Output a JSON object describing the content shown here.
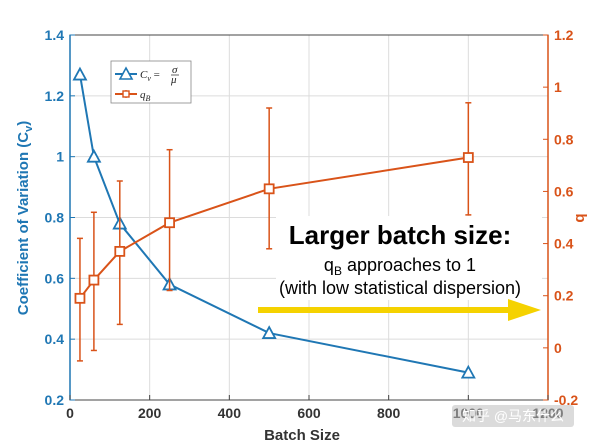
{
  "chart_data": {
    "type": "line",
    "xlabel": "Batch Size",
    "ylabel_left": "Coefficient of Variation (C",
    "ylabel_left_sub": "v",
    "ylabel_left_close": ")",
    "ylabel_right": "q",
    "xlim": [
      0,
      1200
    ],
    "ylim_left": [
      0.2,
      1.4
    ],
    "ylim_right": [
      -0.2,
      1.2
    ],
    "xticks": [
      0,
      200,
      400,
      600,
      800,
      1000,
      1200
    ],
    "xtick_labels": [
      "0",
      "200",
      "400",
      "600",
      "800",
      "1000",
      "1200"
    ],
    "yticks_left": [
      0.2,
      0.4,
      0.6,
      0.8,
      1,
      1.2,
      1.4
    ],
    "ytick_labels_left": [
      "0.2",
      "0.4",
      "0.6",
      "0.8",
      "1",
      "1.2",
      "1.4"
    ],
    "yticks_right": [
      -0.2,
      0,
      0.2,
      0.4,
      0.6,
      0.8,
      1,
      1.2
    ],
    "ytick_labels_right": [
      "-0.2",
      "0",
      "0.2",
      "0.4",
      "0.6",
      "0.8",
      "1",
      "1.2"
    ],
    "grid": true,
    "legend_position": "top-left",
    "series": [
      {
        "name": "C_v = σ/μ",
        "axis": "left",
        "color": "#1f77b4",
        "marker": "triangle",
        "x": [
          25,
          60,
          125,
          250,
          500,
          1000
        ],
        "y": [
          1.27,
          1.0,
          0.78,
          0.58,
          0.42,
          0.29
        ]
      },
      {
        "name": "q_B",
        "axis": "right",
        "color": "#d95319",
        "marker": "square",
        "x": [
          25,
          60,
          125,
          250,
          500,
          1000
        ],
        "y": [
          0.19,
          0.26,
          0.37,
          0.48,
          0.61,
          0.73
        ],
        "err_low": [
          -0.05,
          -0.01,
          0.09,
          0.22,
          0.38,
          0.51
        ],
        "err_high": [
          0.42,
          0.52,
          0.64,
          0.76,
          0.92,
          0.94
        ]
      }
    ]
  },
  "legend": {
    "cv_prefix": "C",
    "cv_sub": "v",
    "cv_eq": " = ",
    "cv_num": "σ",
    "cv_den": "μ",
    "qb_main": "q",
    "qb_sub": "B"
  },
  "annotation": {
    "title": "Larger batch size:",
    "line1_q": "q",
    "line1_sub": "B",
    "line1_rest": " approaches to 1",
    "line2": "(with low statistical dispersion)",
    "arrow_color": "#f5d200"
  },
  "watermark": "知乎 @马东什么",
  "colors": {
    "left_axis": "#1f77b4",
    "right_axis": "#d95319",
    "grid": "#dcdcdc"
  }
}
